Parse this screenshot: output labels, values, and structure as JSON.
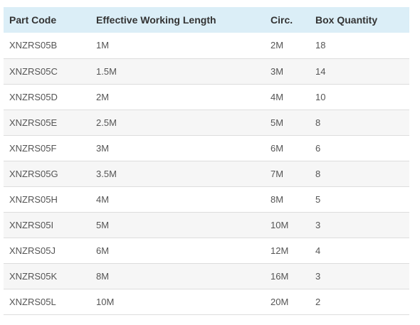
{
  "table": {
    "headers": [
      "Part Code",
      "Effective Working Length",
      "Circ.",
      "Box Quantity"
    ],
    "rows": [
      [
        "XNZRS05B",
        "1M",
        "2M",
        "18"
      ],
      [
        "XNZRS05C",
        "1.5M",
        "3M",
        "14"
      ],
      [
        "XNZRS05D",
        "2M",
        "4M",
        "10"
      ],
      [
        "XNZRS05E",
        "2.5M",
        "5M",
        "8"
      ],
      [
        "XNZRS05F",
        "3M",
        "6M",
        "6"
      ],
      [
        "XNZRS05G",
        "3.5M",
        "7M",
        "8"
      ],
      [
        "XNZRS05H",
        "4M",
        "8M",
        "5"
      ],
      [
        "XNZRS05I",
        "5M",
        "10M",
        "3"
      ],
      [
        "XNZRS05J",
        "6M",
        "12M",
        "4"
      ],
      [
        "XNZRS05K",
        "8M",
        "16M",
        "3"
      ],
      [
        "XNZRS05L",
        "10M",
        "20M",
        "2"
      ]
    ]
  },
  "colors": {
    "header_background": "#dbeef7",
    "stripe_background": "#f6f6f6",
    "row_divider": "#dddddd"
  }
}
